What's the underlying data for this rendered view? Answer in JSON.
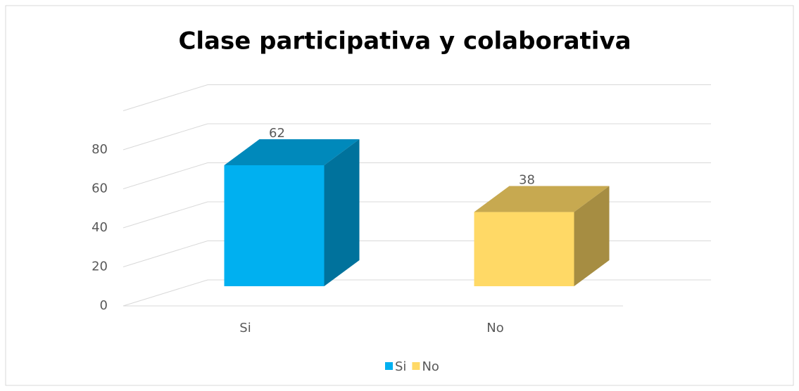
{
  "chart_data": {
    "type": "bar3d",
    "title": "Clase participativa y colaborativa",
    "categories": [
      "Si",
      "No"
    ],
    "values": [
      62,
      38
    ],
    "colors": [
      "#00b0f0",
      "#ffd966"
    ],
    "ylim": [
      0,
      100
    ],
    "yticks": [
      0,
      20,
      40,
      60,
      80
    ],
    "grid": true,
    "legend": "bottom"
  }
}
